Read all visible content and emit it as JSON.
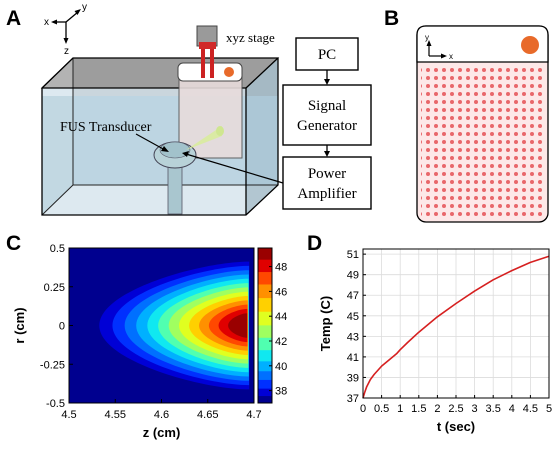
{
  "panels": {
    "a": {
      "letter": "A",
      "axes": {
        "x": "x",
        "y": "y",
        "z": "z"
      },
      "stage_label": "xyz stage",
      "transducer_label": "FUS Transducer",
      "boxes": {
        "pc": "PC",
        "signal_line1": "Signal",
        "signal_line2": "Generator",
        "power_line1": "Power",
        "power_line2": "Amplifier"
      }
    },
    "b": {
      "letter": "B",
      "axes": {
        "x": "x",
        "y": "y"
      },
      "grid_color": "#e8676a",
      "marker_color": "#e86a2a"
    },
    "c": {
      "letter": "C"
    },
    "d": {
      "letter": "D"
    }
  },
  "chart_data": [
    {
      "type": "heatmap",
      "xlabel": "z (cm)",
      "ylabel": "r (cm)",
      "xlim": [
        4.5,
        4.7
      ],
      "ylim": [
        -0.5,
        0.5
      ],
      "x_ticks": [
        "4.5",
        "4.55",
        "4.6",
        "4.65",
        "4.7"
      ],
      "y_ticks": [
        "0.5",
        "0.25",
        "0",
        "-0.25",
        "-0.5"
      ],
      "colorbar_ticks": [
        "48",
        "46",
        "44",
        "42",
        "40",
        "38"
      ],
      "colorbar_range": [
        37,
        49.5
      ],
      "levels": [
        37,
        37.6,
        38.2,
        38.9,
        39.6,
        40.4,
        41.3,
        42.3,
        43.3,
        44.4,
        45.5,
        46.6,
        47.6,
        48.6
      ],
      "colors": [
        "#00008f",
        "#0000d6",
        "#0030ff",
        "#0070ff",
        "#00b0ff",
        "#10e8f0",
        "#50ffb0",
        "#a0ff60",
        "#e0ff20",
        "#ffd000",
        "#ff9000",
        "#ff4800",
        "#e00000",
        "#9a0000"
      ],
      "peak_z": 4.692,
      "peak_value": 49
    },
    {
      "type": "line",
      "xlabel": "t (sec)",
      "ylabel": "Temp (C)",
      "xlim": [
        0,
        5
      ],
      "ylim": [
        37,
        51.5
      ],
      "x_ticks": [
        "0",
        "0.5",
        "1",
        "1.5",
        "2",
        "2.5",
        "3",
        "3.5",
        "4",
        "4.5",
        "5"
      ],
      "y_ticks": [
        "51",
        "49",
        "47",
        "45",
        "43",
        "41",
        "39",
        "37"
      ],
      "grid": true,
      "series": [
        {
          "color": "#d62020",
          "x": [
            0,
            0.05,
            0.1,
            0.2,
            0.3,
            0.5,
            0.7,
            0.9,
            1.0,
            1.2,
            1.5,
            2.0,
            2.5,
            3.0,
            3.5,
            4.0,
            4.5,
            5.0
          ],
          "y": [
            37.0,
            37.6,
            38.1,
            38.8,
            39.3,
            40.1,
            40.7,
            41.3,
            41.7,
            42.4,
            43.4,
            44.9,
            46.2,
            47.4,
            48.5,
            49.4,
            50.2,
            50.8
          ]
        }
      ]
    }
  ]
}
